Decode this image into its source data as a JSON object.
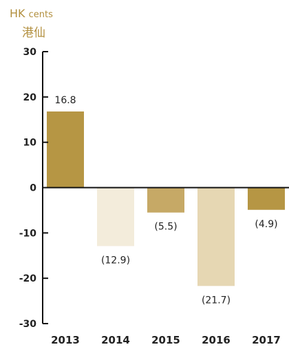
{
  "unit": {
    "en": "HK",
    "en_small": "cents",
    "zh": "港仙"
  },
  "chart_data": {
    "type": "bar",
    "categories": [
      "2013",
      "2014",
      "2015",
      "2016",
      "2017"
    ],
    "values": [
      16.8,
      -12.9,
      -5.5,
      -21.7,
      -4.9
    ],
    "value_labels": [
      "16.8",
      "(12.9)",
      "(5.5)",
      "(21.7)",
      "(4.9)"
    ],
    "colors": [
      "#b69644",
      "#f3ecdb",
      "#c6a966",
      "#e6d7b3",
      "#b69644"
    ],
    "ylim": [
      -30,
      30
    ],
    "yticks": [
      30,
      20,
      10,
      0,
      -10,
      -20,
      -30
    ],
    "title": "",
    "xlabel": "",
    "ylabel": "HK cents 港仙",
    "grid": false,
    "legend": "none"
  }
}
